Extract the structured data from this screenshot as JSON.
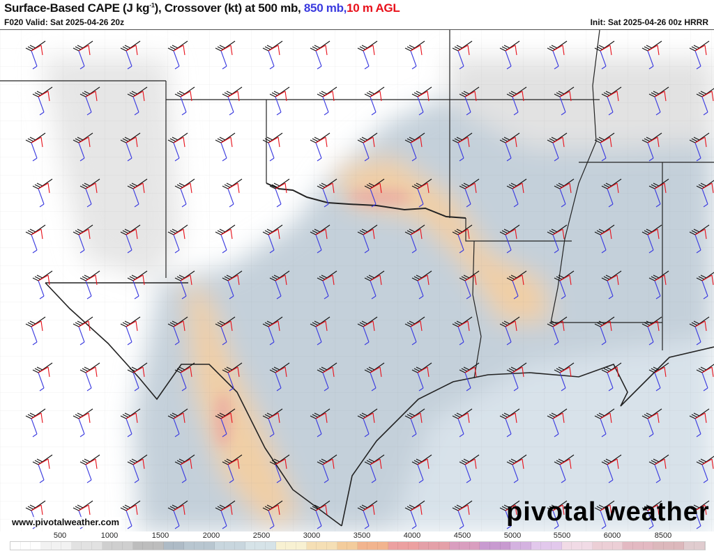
{
  "header": {
    "title_main": "Surface-Based CAPE (J kg",
    "title_sup": "-1",
    "title_rest": "), Crossover (kt) at 500 mb, ",
    "title_850": "850 mb,",
    "title_10m": "10 m AGL",
    "valid": "F020 Valid: Sat 2025-04-26 20z",
    "init": "Init: Sat 2025-04-26 00z HRRR"
  },
  "footer": {
    "website": "www.pivotalweather.com",
    "logo": "pivotal weather"
  },
  "colorbar": {
    "labels": [
      "500",
      "1000",
      "1500",
      "2000",
      "2500",
      "3000",
      "3500",
      "4000",
      "4500",
      "5000",
      "5500",
      "6000",
      "8500"
    ],
    "colors": [
      "#ffffff",
      "#f2f2f2",
      "#e2e2e2",
      "#cfcfcf",
      "#bdbdbd",
      "#aebbc6",
      "#b8c6d0",
      "#c8d6de",
      "#d6e3e8",
      "#f8f1d2",
      "#f5dfb5",
      "#f3cc9c",
      "#f2b48e",
      "#eca0a0",
      "#e4a0a8",
      "#d99ebf",
      "#c89ad0",
      "#d4b2e0",
      "#e2c8ec",
      "#f1dbe6",
      "#eccfd6",
      "#e3b9c2",
      "#dcb8bc",
      "#e0cccf"
    ],
    "accent_500mb": "#111111",
    "accent_850mb": "#3a3adf",
    "accent_10m": "#e8101a"
  }
}
